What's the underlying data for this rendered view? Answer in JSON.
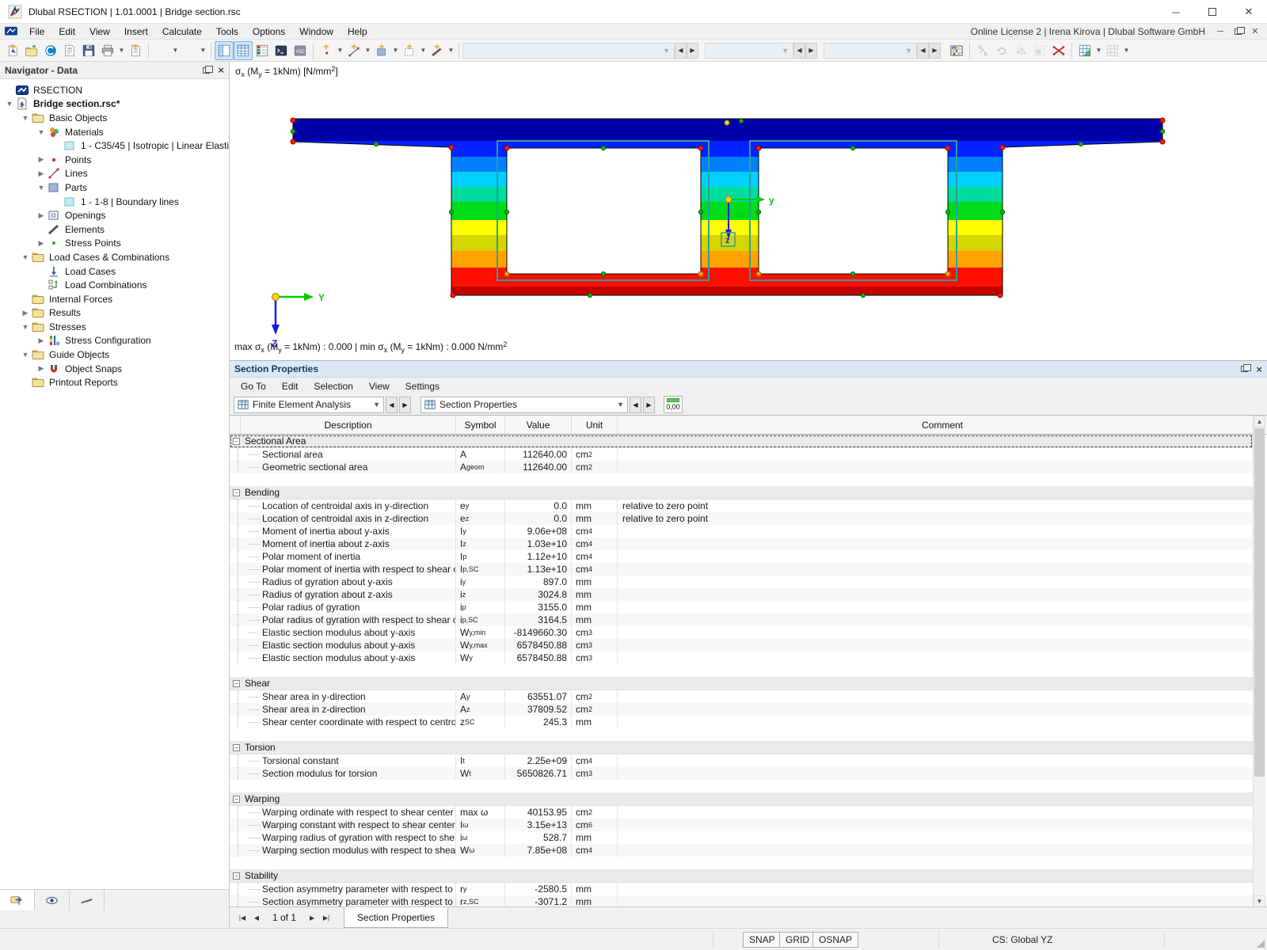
{
  "window": {
    "title": "Dlubal RSECTION | 1.01.0001 | Bridge section.rsc",
    "license": "Online License 2 | Irena Kirova | Dlubal Software GmbH"
  },
  "menu": {
    "items": [
      "File",
      "Edit",
      "View",
      "Insert",
      "Calculate",
      "Tools",
      "Options",
      "Window",
      "Help"
    ]
  },
  "toolbar": {
    "left_icons": [
      "new-model",
      "open-file",
      "connect",
      "print-preview",
      "save",
      "print",
      "new-report"
    ],
    "edit_icons": [
      "undo",
      "redo"
    ],
    "panel_icons": [
      "navigator-toggle",
      "tables-toggle",
      "panels-toggle",
      "console-toggle",
      "sc-toggle"
    ],
    "create_icons": [
      "new-point",
      "new-line",
      "new-part",
      "new-opening",
      "new-element"
    ],
    "combos": [
      "",
      "",
      ""
    ],
    "right_icons": [
      "abacus",
      "trim",
      "rotate",
      "mirror",
      "select-region",
      "delete",
      "table-active",
      "table-inactive"
    ]
  },
  "navigator": {
    "title": "Navigator - Data",
    "items": [
      {
        "label": "RSECTION",
        "depth": 0,
        "icon": "rsection",
        "chevron": "none",
        "bold": false
      },
      {
        "label": "Bridge section.rsc*",
        "depth": 0,
        "icon": "doc",
        "chevron": "open",
        "bold": true
      },
      {
        "label": "Basic Objects",
        "depth": 1,
        "icon": "folder",
        "chevron": "open",
        "bold": false
      },
      {
        "label": "Materials",
        "depth": 2,
        "icon": "materials",
        "chevron": "open",
        "bold": false
      },
      {
        "label": "1 - C35/45 | Isotropic | Linear Elastic",
        "depth": 3,
        "icon": "swatch",
        "chevron": "none",
        "bold": false
      },
      {
        "label": "Points",
        "depth": 2,
        "icon": "points",
        "chevron": "closed",
        "bold": false
      },
      {
        "label": "Lines",
        "depth": 2,
        "icon": "lines",
        "chevron": "closed",
        "bold": false
      },
      {
        "label": "Parts",
        "depth": 2,
        "icon": "parts",
        "chevron": "open",
        "bold": false
      },
      {
        "label": "1 - 1-8 | Boundary lines",
        "depth": 3,
        "icon": "swatch",
        "chevron": "none",
        "bold": false
      },
      {
        "label": "Openings",
        "depth": 2,
        "icon": "openings",
        "chevron": "closed",
        "bold": false
      },
      {
        "label": "Elements",
        "depth": 2,
        "icon": "elements",
        "chevron": "none",
        "bold": false
      },
      {
        "label": "Stress Points",
        "depth": 2,
        "icon": "stress-points",
        "chevron": "closed",
        "bold": false
      },
      {
        "label": "Load Cases & Combinations",
        "depth": 1,
        "icon": "folder",
        "chevron": "open",
        "bold": false
      },
      {
        "label": "Load Cases",
        "depth": 2,
        "icon": "load-cases",
        "chevron": "none",
        "bold": false
      },
      {
        "label": "Load Combinations",
        "depth": 2,
        "icon": "load-combinations",
        "chevron": "none",
        "bold": false
      },
      {
        "label": "Internal Forces",
        "depth": 1,
        "icon": "folder",
        "chevron": "none",
        "bold": false
      },
      {
        "label": "Results",
        "depth": 1,
        "icon": "folder",
        "chevron": "closed",
        "bold": false
      },
      {
        "label": "Stresses",
        "depth": 1,
        "icon": "folder",
        "chevron": "open",
        "bold": false
      },
      {
        "label": "Stress Configuration",
        "depth": 2,
        "icon": "stress-config",
        "chevron": "closed",
        "bold": false
      },
      {
        "label": "Guide Objects",
        "depth": 1,
        "icon": "folder",
        "chevron": "open",
        "bold": false
      },
      {
        "label": "Object Snaps",
        "depth": 2,
        "icon": "object-snaps",
        "chevron": "closed",
        "bold": false
      },
      {
        "label": "Printout Reports",
        "depth": 1,
        "icon": "folder",
        "chevron": "none",
        "bold": false
      }
    ],
    "bottom_tabs": [
      "data-tab",
      "views-tab",
      "relations-tab"
    ]
  },
  "viewport": {
    "label_segments": [
      {
        "t": "σ"
      },
      {
        "t": "x",
        "sub": true
      },
      {
        "t": " (M"
      },
      {
        "t": "y",
        "sub": true
      },
      {
        "t": " = 1kNm) [N/mm"
      },
      {
        "t": "2",
        "sup": true
      },
      {
        "t": "]"
      }
    ],
    "status_segments": [
      {
        "t": "max σ"
      },
      {
        "t": "x",
        "sub": true
      },
      {
        "t": " (M"
      },
      {
        "t": "y",
        "sub": true
      },
      {
        "t": " = 1kNm) : 0.000 | min σ"
      },
      {
        "t": "x",
        "sub": true
      },
      {
        "t": " (M"
      },
      {
        "t": "y",
        "sub": true
      },
      {
        "t": " = 1kNm) : 0.000 N/mm"
      },
      {
        "t": "2",
        "sup": true
      }
    ],
    "axis_labels": {
      "origin_y": "Y",
      "origin_z": "Z",
      "centroid_y": "y",
      "centroid_z": "z",
      "shear_center": "SC"
    },
    "stress_band_colors": [
      "#0000A8",
      "#0023FF",
      "#0080FF",
      "#00CFFF",
      "#00DC9B",
      "#00DC19",
      "#FFFF00",
      "#D5D500",
      "#FFA300",
      "#FF0F00",
      "#C30000"
    ],
    "marker_colors": {
      "red": "#FF1E00",
      "red_ring": "#8B0000",
      "green": "#00BE00",
      "green_ring": "#006400",
      "orange": "#FFA000",
      "orange_ring": "#B85C00",
      "yellow": "#FFD400",
      "yellow_ring": "#9A8200"
    },
    "outline_color": "#000000",
    "opening_frame_color": "#2E9E9E",
    "axis_y_color": "#00CC00",
    "axis_z_color": "#1A1AE6"
  },
  "props": {
    "title": "Section Properties",
    "menu": [
      "Go To",
      "Edit",
      "Selection",
      "View",
      "Settings"
    ],
    "combo1": "Finite Element Analysis",
    "combo2": "Section Properties",
    "decimal_button": "0,00",
    "table": {
      "columns": [
        "Description",
        "Symbol",
        "Value",
        "Unit",
        "Comment"
      ],
      "groups": [
        {
          "name": "Sectional Area",
          "selected": true,
          "rows": [
            {
              "desc": "Sectional area",
              "sym": "A",
              "symSub": "",
              "value": "112640.00",
              "unit": "cm",
              "unitSup": "2",
              "comment": ""
            },
            {
              "desc": "Geometric sectional area",
              "sym": "A",
              "symSub": "geom",
              "value": "112640.00",
              "unit": "cm",
              "unitSup": "2",
              "comment": ""
            }
          ]
        },
        {
          "name": "Bending",
          "selected": false,
          "rows": [
            {
              "desc": "Location of centroidal axis in y-direction",
              "sym": "e",
              "symSub": "y",
              "value": "0.0",
              "unit": "mm",
              "unitSup": "",
              "comment": "relative to zero point"
            },
            {
              "desc": "Location of centroidal axis in z-direction",
              "sym": "e",
              "symSub": "z",
              "value": "0.0",
              "unit": "mm",
              "unitSup": "",
              "comment": "relative to zero point"
            },
            {
              "desc": "Moment of inertia about y-axis",
              "sym": "I",
              "symSub": "y",
              "value": "9.06e+08",
              "unit": "cm",
              "unitSup": "4",
              "comment": ""
            },
            {
              "desc": "Moment of inertia about z-axis",
              "sym": "I",
              "symSub": "z",
              "value": "1.03e+10",
              "unit": "cm",
              "unitSup": "4",
              "comment": ""
            },
            {
              "desc": "Polar moment of inertia",
              "sym": "I",
              "symSub": "p",
              "value": "1.12e+10",
              "unit": "cm",
              "unitSup": "4",
              "comment": ""
            },
            {
              "desc": "Polar moment of inertia with respect to shear c...",
              "sym": "I",
              "symSub": "p,SC",
              "value": "1.13e+10",
              "unit": "cm",
              "unitSup": "4",
              "comment": ""
            },
            {
              "desc": "Radius of gyration about y-axis",
              "sym": "i",
              "symSub": "y",
              "value": "897.0",
              "unit": "mm",
              "unitSup": "",
              "comment": ""
            },
            {
              "desc": "Radius of gyration about z-axis",
              "sym": "i",
              "symSub": "z",
              "value": "3024.8",
              "unit": "mm",
              "unitSup": "",
              "comment": ""
            },
            {
              "desc": "Polar radius of gyration",
              "sym": "i",
              "symSub": "p",
              "value": "3155.0",
              "unit": "mm",
              "unitSup": "",
              "comment": ""
            },
            {
              "desc": "Polar radius of gyration with respect to shear c...",
              "sym": "i",
              "symSub": "p,SC",
              "value": "3164.5",
              "unit": "mm",
              "unitSup": "",
              "comment": ""
            },
            {
              "desc": "Elastic section modulus about y-axis",
              "sym": "W",
              "symSub": "y,min",
              "value": "-8149660.30",
              "unit": "cm",
              "unitSup": "3",
              "comment": ""
            },
            {
              "desc": "Elastic section modulus about y-axis",
              "sym": "W",
              "symSub": "y,max",
              "value": "6578450.88",
              "unit": "cm",
              "unitSup": "3",
              "comment": ""
            },
            {
              "desc": "Elastic section modulus about y-axis",
              "sym": "W",
              "symSub": "y",
              "value": "6578450.88",
              "unit": "cm",
              "unitSup": "3",
              "comment": ""
            }
          ]
        },
        {
          "name": "Shear",
          "selected": false,
          "rows": [
            {
              "desc": "Shear area in y-direction",
              "sym": "A",
              "symSub": "y",
              "value": "63551.07",
              "unit": "cm",
              "unitSup": "2",
              "comment": ""
            },
            {
              "desc": "Shear area in z-direction",
              "sym": "A",
              "symSub": "z",
              "value": "37809.52",
              "unit": "cm",
              "unitSup": "2",
              "comment": ""
            },
            {
              "desc": "Shear center coordinate with respect to centroi...",
              "sym": "z",
              "symSub": "SC",
              "value": "245.3",
              "unit": "mm",
              "unitSup": "",
              "comment": ""
            }
          ]
        },
        {
          "name": "Torsion",
          "selected": false,
          "rows": [
            {
              "desc": "Torsional constant",
              "sym": "I",
              "symSub": "t",
              "value": "2.25e+09",
              "unit": "cm",
              "unitSup": "4",
              "comment": ""
            },
            {
              "desc": "Section modulus for torsion",
              "sym": "W",
              "symSub": "t",
              "value": "5650826.71",
              "unit": "cm",
              "unitSup": "3",
              "comment": ""
            }
          ]
        },
        {
          "name": "Warping",
          "selected": false,
          "rows": [
            {
              "desc": "Warping ordinate with respect to shear center",
              "sym": "max ω",
              "symSub": "",
              "value": "40153.95",
              "unit": "cm",
              "unitSup": "2",
              "comment": ""
            },
            {
              "desc": "Warping constant with respect to shear center",
              "sym": "I",
              "symSub": "ω",
              "value": "3.15e+13",
              "unit": "cm",
              "unitSup": "6",
              "comment": ""
            },
            {
              "desc": "Warping radius of gyration with respect to she...",
              "sym": "i",
              "symSub": "ω",
              "value": "528.7",
              "unit": "mm",
              "unitSup": "",
              "comment": ""
            },
            {
              "desc": "Warping section modulus with respect to shear...",
              "sym": "W",
              "symSub": "ω",
              "value": "7.85e+08",
              "unit": "cm",
              "unitSup": "4",
              "comment": ""
            }
          ]
        },
        {
          "name": "Stability",
          "selected": false,
          "rows": [
            {
              "desc": "Section asymmetry parameter with respect to ce...",
              "sym": "r",
              "symSub": "y",
              "value": "-2580.5",
              "unit": "mm",
              "unitSup": "",
              "comment": ""
            },
            {
              "desc": "Section asymmetry parameter with respect to sh...",
              "sym": "r",
              "symSub": "z,SC",
              "value": "-3071.2",
              "unit": "mm",
              "unitSup": "",
              "comment": ""
            }
          ]
        }
      ]
    },
    "pagination": {
      "label": "1 of 1",
      "tab": "Section Properties",
      "icons": [
        "first-page",
        "previous-page",
        "next-page",
        "last-page"
      ]
    }
  },
  "statusbar": {
    "buttons": [
      "SNAP",
      "GRID",
      "OSNAP"
    ],
    "cs": "CS: Global YZ"
  }
}
